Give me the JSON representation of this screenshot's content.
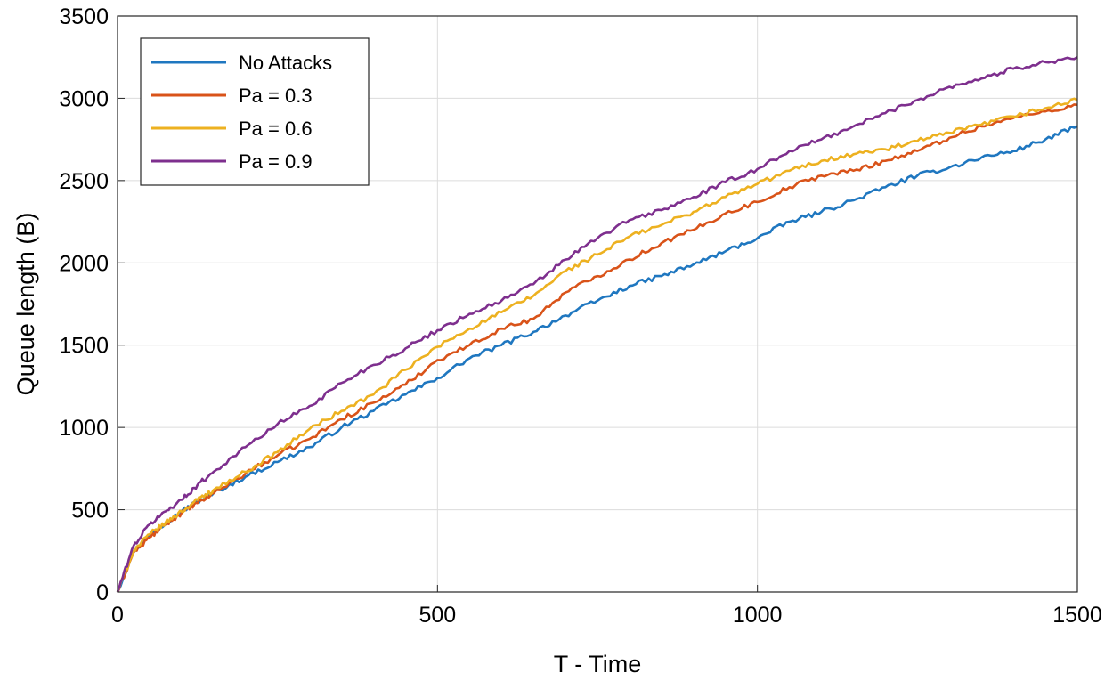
{
  "chart_data": {
    "type": "line",
    "title": "",
    "xlabel": "T - Time",
    "ylabel": "Queue length (B)",
    "xlim": [
      0,
      1500
    ],
    "ylim": [
      0,
      3500
    ],
    "xticks": [
      0,
      500,
      1000,
      1500
    ],
    "yticks": [
      0,
      500,
      1000,
      1500,
      2000,
      2500,
      3000,
      3500
    ],
    "grid": true,
    "legend_position": "top-left",
    "series": [
      {
        "name": "No Attacks",
        "color": "#1f77c0",
        "x": [
          0,
          25,
          50,
          75,
          100,
          125,
          150,
          200,
          250,
          300,
          350,
          400,
          450,
          500,
          550,
          600,
          650,
          700,
          750,
          800,
          850,
          900,
          950,
          1000,
          1050,
          1100,
          1150,
          1200,
          1250,
          1300,
          1350,
          1400,
          1450,
          1500
        ],
        "values": [
          0,
          250,
          340,
          420,
          490,
          550,
          600,
          700,
          790,
          880,
          1000,
          1100,
          1200,
          1300,
          1420,
          1500,
          1580,
          1680,
          1770,
          1860,
          1920,
          1990,
          2070,
          2150,
          2250,
          2310,
          2380,
          2460,
          2530,
          2580,
          2640,
          2680,
          2750,
          2830
        ]
      },
      {
        "name": "Pa = 0.3",
        "color": "#d95319",
        "x": [
          0,
          25,
          50,
          75,
          100,
          125,
          150,
          200,
          250,
          300,
          350,
          400,
          450,
          500,
          550,
          600,
          650,
          700,
          750,
          800,
          850,
          900,
          950,
          1000,
          1050,
          1100,
          1150,
          1200,
          1250,
          1300,
          1350,
          1400,
          1450,
          1500
        ],
        "values": [
          0,
          240,
          330,
          410,
          480,
          540,
          600,
          720,
          830,
          930,
          1050,
          1150,
          1260,
          1410,
          1500,
          1600,
          1660,
          1820,
          1920,
          2020,
          2120,
          2200,
          2300,
          2370,
          2460,
          2530,
          2560,
          2620,
          2680,
          2760,
          2830,
          2880,
          2920,
          2960
        ]
      },
      {
        "name": "Pa = 0.6",
        "color": "#edb120",
        "x": [
          0,
          25,
          50,
          75,
          100,
          125,
          150,
          200,
          250,
          300,
          350,
          400,
          450,
          500,
          550,
          600,
          650,
          700,
          750,
          800,
          850,
          900,
          950,
          1000,
          1050,
          1100,
          1150,
          1200,
          1250,
          1300,
          1350,
          1400,
          1450,
          1500
        ],
        "values": [
          0,
          250,
          350,
          420,
          490,
          560,
          620,
          730,
          850,
          990,
          1100,
          1200,
          1350,
          1490,
          1600,
          1700,
          1800,
          1950,
          2050,
          2160,
          2230,
          2310,
          2400,
          2480,
          2560,
          2620,
          2660,
          2690,
          2740,
          2790,
          2840,
          2890,
          2940,
          2990
        ]
      },
      {
        "name": "Pa = 0.9",
        "color": "#7e2f8e",
        "x": [
          0,
          25,
          50,
          75,
          100,
          125,
          150,
          200,
          250,
          300,
          350,
          400,
          450,
          500,
          550,
          600,
          650,
          700,
          750,
          800,
          850,
          900,
          950,
          1000,
          1050,
          1100,
          1150,
          1200,
          1250,
          1300,
          1350,
          1400,
          1450,
          1500
        ],
        "values": [
          0,
          280,
          410,
          490,
          560,
          650,
          730,
          880,
          1020,
          1130,
          1270,
          1380,
          1480,
          1590,
          1690,
          1770,
          1870,
          2020,
          2150,
          2260,
          2320,
          2400,
          2490,
          2570,
          2680,
          2750,
          2830,
          2910,
          2990,
          3070,
          3120,
          3180,
          3220,
          3250
        ]
      }
    ]
  }
}
